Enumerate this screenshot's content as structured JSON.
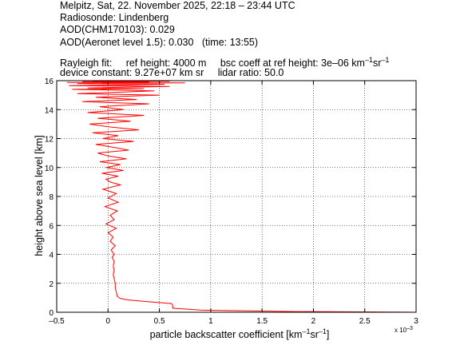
{
  "header": {
    "line1": "Melpitz, Sat, 22. November 2025, 22:18 – 23:44 UTC",
    "line2": "Radiosonde: Lindenberg",
    "line3": "AOD(CHM170103): 0.029",
    "line4": "AOD(Aeronet level 1.5): 0.030   (time: 13:55)",
    "rayleigh_label": "Rayleigh fit:",
    "ref_height": "ref height: 4000 m",
    "bsc_coeff": "bsc coeff at ref height: 3e–06 km",
    "bsc_units_sup1": "–1",
    "bsc_units_mid": "sr",
    "bsc_units_sup2": "–1",
    "device_constant": "device constant: 9.27e+07 km sr",
    "lidar_ratio": "lidar ratio: 50.0"
  },
  "chart_data": {
    "type": "line",
    "xlabel": "particle backscatter coefficient [km",
    "xlabel_sup1": "–1",
    "xlabel_mid": "sr",
    "xlabel_sup2": "–1",
    "xlabel_end": "]",
    "ylabel": "height above sea level [km]",
    "x_multiplier_label": "x 10",
    "x_multiplier_exp": "–3",
    "xlim": [
      -0.5,
      3
    ],
    "ylim": [
      0,
      16
    ],
    "xticks": [
      "–0.5",
      "0",
      "0.5",
      "1",
      "1.5",
      "2",
      "2.5",
      "3"
    ],
    "xtick_values": [
      -0.5,
      0,
      0.5,
      1,
      1.5,
      2,
      2.5,
      3
    ],
    "yticks": [
      "0",
      "2",
      "4",
      "6",
      "8",
      "10",
      "12",
      "14",
      "16"
    ],
    "ytick_values": [
      0,
      2,
      4,
      6,
      8,
      10,
      12,
      14,
      16
    ],
    "grid": true,
    "line_color": "#ff0000",
    "series": [
      {
        "x": [
          3.0,
          1.8,
          0.9,
          0.63,
          0.63,
          0.62,
          0.35,
          0.2,
          0.12,
          0.09,
          0.08,
          0.07,
          0.07,
          0.06,
          0.05,
          0.06,
          0.05,
          0.06,
          0.04,
          0.06,
          0.03,
          0.07,
          0.02,
          0.05,
          0.0,
          0.08,
          -0.02,
          0.06,
          0.02,
          0.09,
          -0.03,
          0.1,
          0.0,
          0.08,
          -0.05,
          0.12,
          0.02,
          -0.02,
          0.1,
          -0.06,
          0.15,
          -0.02,
          0.12,
          -0.08,
          0.18,
          0.0,
          -0.1,
          0.2,
          0.05,
          -0.12,
          0.25,
          -0.05,
          0.1,
          -0.15,
          0.3,
          0.02,
          -0.18,
          0.22,
          -0.1,
          0.35,
          -0.2,
          0.15,
          -0.08,
          0.4,
          -0.25,
          0.28,
          -0.12,
          0.5,
          -0.3,
          0.1,
          0.45,
          -0.35,
          0.35,
          -0.2,
          0.6,
          -0.38,
          0.2,
          0.55,
          -0.3,
          0.75,
          -0.4,
          0.4,
          -0.25,
          0.6,
          -0.15,
          0.68
        ],
        "y": [
          0.0,
          0.05,
          0.15,
          0.28,
          0.45,
          0.6,
          0.75,
          0.85,
          0.95,
          1.1,
          1.4,
          1.7,
          2.0,
          2.3,
          2.6,
          2.9,
          3.2,
          3.5,
          3.8,
          4.0,
          4.3,
          4.6,
          4.9,
          5.2,
          5.5,
          5.8,
          6.1,
          6.4,
          6.7,
          7.0,
          7.3,
          7.6,
          7.9,
          8.2,
          8.5,
          8.8,
          9.0,
          9.2,
          9.4,
          9.6,
          9.8,
          10.0,
          10.2,
          10.4,
          10.6,
          10.8,
          11.0,
          11.2,
          11.4,
          11.6,
          11.8,
          12.0,
          12.2,
          12.4,
          12.6,
          12.8,
          13.0,
          13.2,
          13.4,
          13.6,
          13.8,
          14.0,
          14.2,
          14.4,
          14.55,
          14.7,
          14.85,
          15.0,
          15.1,
          15.2,
          15.3,
          15.4,
          15.45,
          15.5,
          15.6,
          15.65,
          15.7,
          15.75,
          15.8,
          15.85,
          15.88,
          15.9,
          15.93,
          15.95,
          15.97,
          16.0
        ]
      }
    ]
  }
}
